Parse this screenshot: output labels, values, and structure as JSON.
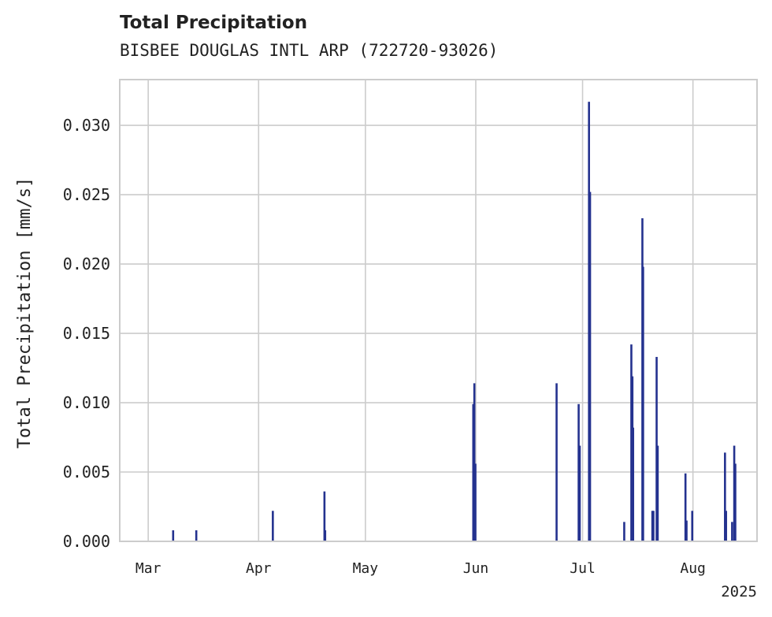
{
  "chart_data": {
    "type": "bar",
    "title": "Total Precipitation",
    "subtitle": "BISBEE DOUGLAS INTL ARP (722720-93026)",
    "xlabel": "",
    "ylabel": "Total Precipitation [mm/s]",
    "x_is_time": true,
    "x_range_days": [
      -8,
      171
    ],
    "ylim": [
      0,
      0.0333
    ],
    "yticks": [
      0.0,
      0.005,
      0.01,
      0.015,
      0.02,
      0.025,
      0.03
    ],
    "ytick_labels": [
      "0.000",
      "0.005",
      "0.010",
      "0.015",
      "0.020",
      "0.025",
      "0.030"
    ],
    "xticks": [
      {
        "day": 0,
        "label": "Mar"
      },
      {
        "day": 31,
        "label": "Apr"
      },
      {
        "day": 61,
        "label": "May"
      },
      {
        "day": 92,
        "label": "Jun"
      },
      {
        "day": 122,
        "label": "Jul"
      },
      {
        "day": 153,
        "label": "Aug"
      }
    ],
    "x_offset_label": "2025",
    "grid": true,
    "series": [
      {
        "name": "Total Precipitation",
        "color": "#24328f",
        "points": [
          {
            "day": 7,
            "value": 0.0008
          },
          {
            "day": 13.5,
            "value": 0.0008
          },
          {
            "day": 35,
            "value": 0.0022
          },
          {
            "day": 49.5,
            "value": 0.0036
          },
          {
            "day": 49.7,
            "value": 0.0008
          },
          {
            "day": 91.3,
            "value": 0.0099
          },
          {
            "day": 91.6,
            "value": 0.0114
          },
          {
            "day": 91.9,
            "value": 0.0056
          },
          {
            "day": 114.7,
            "value": 0.0114
          },
          {
            "day": 120.9,
            "value": 0.0099
          },
          {
            "day": 121.2,
            "value": 0.0069
          },
          {
            "day": 123.8,
            "value": 0.0317
          },
          {
            "day": 124.1,
            "value": 0.0252
          },
          {
            "day": 133.7,
            "value": 0.0014
          },
          {
            "day": 135.7,
            "value": 0.0142
          },
          {
            "day": 136.0,
            "value": 0.0119
          },
          {
            "day": 136.2,
            "value": 0.0082
          },
          {
            "day": 138.8,
            "value": 0.0233
          },
          {
            "day": 139.0,
            "value": 0.0198
          },
          {
            "day": 141.6,
            "value": 0.0022
          },
          {
            "day": 141.9,
            "value": 0.0022
          },
          {
            "day": 142.8,
            "value": 0.0133
          },
          {
            "day": 143.1,
            "value": 0.0069
          },
          {
            "day": 150.9,
            "value": 0.0049
          },
          {
            "day": 151.2,
            "value": 0.0015
          },
          {
            "day": 152.8,
            "value": 0.0022
          },
          {
            "day": 162.0,
            "value": 0.0064
          },
          {
            "day": 162.3,
            "value": 0.0022
          },
          {
            "day": 164.0,
            "value": 0.0014
          },
          {
            "day": 164.6,
            "value": 0.0069
          },
          {
            "day": 164.9,
            "value": 0.0056
          }
        ]
      }
    ]
  }
}
